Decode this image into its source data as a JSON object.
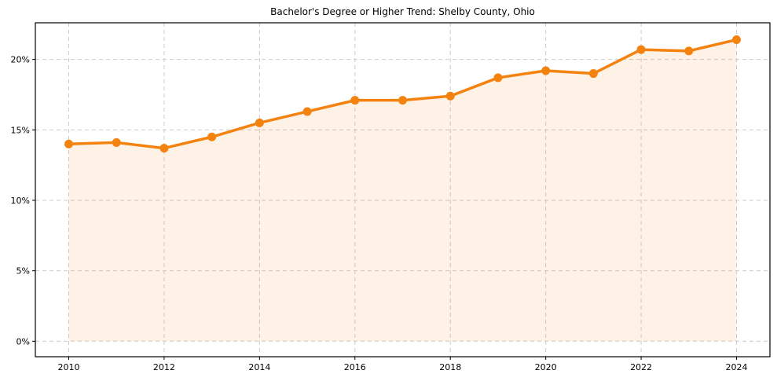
{
  "figure": {
    "title": "Bachelor's Degree or Higher Trend: Shelby County, Ohio",
    "background": "#ffffff"
  },
  "chart_data": {
    "type": "line",
    "title": "Bachelor's Degree or Higher Trend: Shelby County, Ohio",
    "x": [
      2010,
      2011,
      2012,
      2013,
      2014,
      2015,
      2016,
      2017,
      2018,
      2019,
      2020,
      2021,
      2022,
      2023,
      2024
    ],
    "values": [
      14.0,
      14.1,
      13.7,
      14.5,
      15.5,
      16.3,
      17.1,
      17.1,
      17.4,
      18.7,
      19.2,
      19.0,
      20.7,
      20.6,
      21.4
    ],
    "x_tick_values": [
      2010,
      2012,
      2014,
      2016,
      2018,
      2020,
      2022,
      2024
    ],
    "x_tick_labels": [
      "2010",
      "2012",
      "2014",
      "2016",
      "2018",
      "2020",
      "2022",
      "2024"
    ],
    "y_tick_values": [
      0,
      5,
      10,
      15,
      20
    ],
    "y_tick_labels": [
      "0%",
      "5%",
      "10%",
      "15%",
      "20%"
    ],
    "xlim": [
      2009.3,
      2024.7
    ],
    "ylim": [
      -1.1,
      22.6
    ],
    "grid": true,
    "grid_style": "dashed",
    "area_fill": true,
    "legend": "none",
    "xlabel": "",
    "ylabel": "",
    "colors": {
      "line": "#f3820f",
      "marker": "#f3820f",
      "fill": "rgba(243,130,15,0.10)",
      "grid": "#cccccc",
      "axis": "#000000",
      "text": "#000000",
      "background": "#ffffff"
    }
  }
}
